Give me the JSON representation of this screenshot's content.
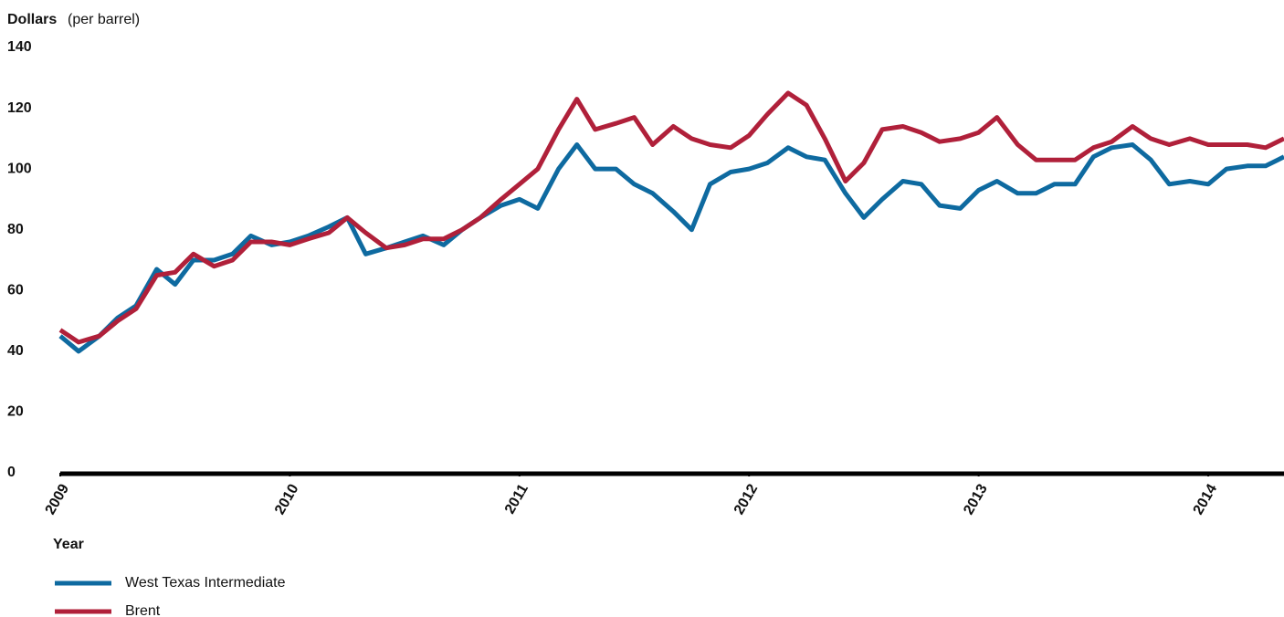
{
  "chart_data": {
    "type": "line",
    "y_axis_label": "Dollars",
    "y_axis_unit": "(per barrel)",
    "x_axis_label": "Year",
    "x": [
      2009,
      2009.08,
      2009.17,
      2009.25,
      2009.33,
      2009.42,
      2009.5,
      2009.58,
      2009.67,
      2009.75,
      2009.83,
      2009.92,
      2010,
      2010.08,
      2010.17,
      2010.25,
      2010.33,
      2010.42,
      2010.5,
      2010.58,
      2010.67,
      2010.75,
      2010.83,
      2010.92,
      2011,
      2011.08,
      2011.17,
      2011.25,
      2011.33,
      2011.42,
      2011.5,
      2011.58,
      2011.67,
      2011.75,
      2011.83,
      2011.92,
      2012,
      2012.08,
      2012.17,
      2012.25,
      2012.33,
      2012.42,
      2012.5,
      2012.58,
      2012.67,
      2012.75,
      2012.83,
      2012.92,
      2013,
      2013.08,
      2013.17,
      2013.25,
      2013.33,
      2013.42,
      2013.5,
      2013.58,
      2013.67,
      2013.75,
      2013.83,
      2013.92,
      2014,
      2014.08,
      2014.17,
      2014.25,
      2014.33
    ],
    "series": [
      {
        "name": "West Texas Intermediate",
        "color": "#0e6aa0",
        "values": [
          45,
          40,
          45,
          51,
          55,
          67,
          62,
          70,
          70,
          72,
          78,
          75,
          76,
          78,
          81,
          84,
          72,
          74,
          76,
          78,
          75,
          80,
          84,
          88,
          90,
          87,
          100,
          108,
          100,
          100,
          95,
          92,
          86,
          80,
          95,
          99,
          100,
          102,
          107,
          104,
          103,
          92,
          84,
          90,
          96,
          95,
          88,
          87,
          93,
          96,
          92,
          92,
          95,
          95,
          104,
          107,
          108,
          103,
          95,
          96,
          95,
          100,
          101,
          101,
          104
        ]
      },
      {
        "name": "Brent",
        "color": "#b0203a",
        "values": [
          47,
          43,
          45,
          50,
          54,
          65,
          66,
          72,
          68,
          70,
          76,
          76,
          75,
          77,
          79,
          84,
          79,
          74,
          75,
          77,
          77,
          80,
          84,
          90,
          95,
          100,
          113,
          123,
          113,
          115,
          117,
          108,
          114,
          110,
          108,
          107,
          111,
          118,
          125,
          121,
          110,
          96,
          102,
          113,
          114,
          112,
          109,
          110,
          112,
          117,
          108,
          103,
          103,
          103,
          107,
          109,
          114,
          110,
          108,
          110,
          108,
          108,
          108,
          107,
          110
        ]
      }
    ],
    "xlim": [
      2009,
      2014.33
    ],
    "xticks": [
      2009,
      2010,
      2011,
      2012,
      2013,
      2014
    ],
    "ylim": [
      0,
      140
    ],
    "yticks": [
      0,
      20,
      40,
      60,
      80,
      100,
      120,
      140
    ],
    "grid": false
  }
}
